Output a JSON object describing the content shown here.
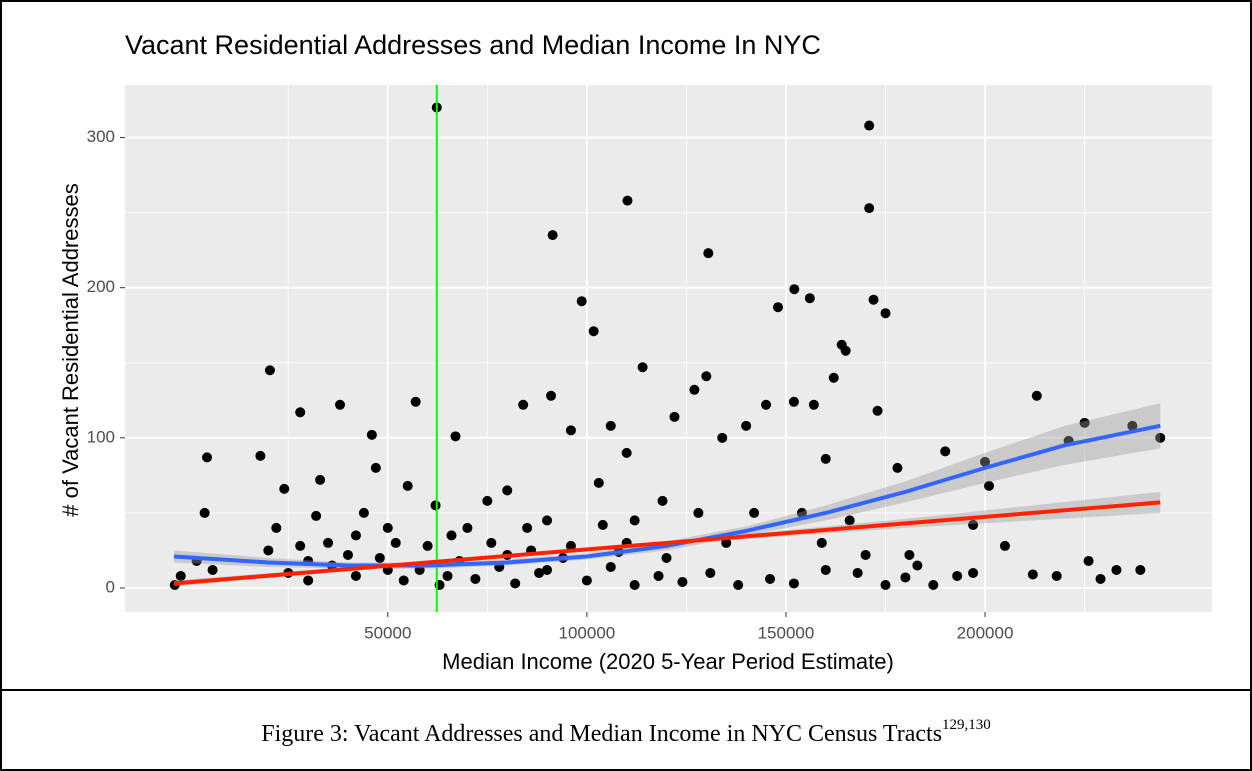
{
  "chart_data": {
    "type": "scatter",
    "title": "Vacant Residential Addresses and Median Income In NYC",
    "x_label": "Median Income (2020 5-Year Period Estimate)",
    "y_label": "# of Vacant Residential Addresses",
    "caption": "Figure 3: Vacant Addresses and Median Income in NYC Census Tracts",
    "caption_refs": "129,130",
    "color": "#000000",
    "x": [
      62300,
      170900,
      110200,
      91400,
      130500,
      170900,
      98700,
      152100,
      148000,
      156000,
      172000,
      175000,
      101700,
      20400,
      114000,
      164000,
      165000,
      162000,
      67000,
      38000,
      28000,
      18000,
      4600,
      57000,
      46000,
      91000,
      84000,
      106000,
      122000,
      130000,
      127000,
      145000,
      152000,
      157000,
      173000,
      190000,
      213000,
      225000,
      221000,
      244000,
      237000,
      178000,
      160000,
      140000,
      134000,
      110000,
      96000,
      103000,
      80000,
      75000,
      55000,
      47000,
      33000,
      24000,
      4000,
      200000,
      201000,
      197000,
      205000,
      212000,
      218000,
      226000,
      229000,
      233000,
      239000,
      183000,
      187000,
      193000,
      197000,
      181000,
      170000,
      166000,
      154000,
      159000,
      142000,
      135000,
      128000,
      119000,
      112000,
      104000,
      90000,
      85000,
      70000,
      62000,
      50000,
      42000,
      35000,
      28000,
      20000,
      2000,
      -2000,
      -3500,
      6000,
      25000,
      30000,
      36000,
      42000,
      48000,
      54000,
      58000,
      63000,
      68000,
      72000,
      78000,
      82000,
      88000,
      94000,
      100000,
      106000,
      112000,
      118000,
      124000,
      131000,
      138000,
      146000,
      152000,
      160000,
      168000,
      175000,
      180000,
      40000,
      60000,
      76000,
      86000,
      96000,
      108000,
      120000,
      22000,
      32000,
      44000,
      52000,
      66000,
      30000,
      50000,
      65000,
      80000,
      90000,
      110000
    ],
    "values": [
      320,
      308,
      258,
      235,
      223,
      253,
      191,
      199,
      187,
      193,
      192,
      183,
      171,
      145,
      147,
      162,
      158,
      140,
      101,
      122,
      117,
      88,
      87,
      124,
      102,
      128,
      122,
      108,
      114,
      141,
      132,
      122,
      124,
      122,
      118,
      91,
      128,
      110,
      98,
      100,
      108,
      80,
      86,
      108,
      100,
      90,
      105,
      70,
      65,
      58,
      68,
      80,
      72,
      66,
      50,
      84,
      68,
      42,
      28,
      9,
      8,
      18,
      6,
      12,
      12,
      15,
      2,
      8,
      10,
      22,
      22,
      45,
      50,
      30,
      50,
      30,
      50,
      58,
      45,
      42,
      45,
      40,
      40,
      55,
      40,
      35,
      30,
      28,
      25,
      18,
      8,
      2,
      12,
      10,
      5,
      15,
      8,
      20,
      5,
      12,
      2,
      18,
      6,
      14,
      3,
      10,
      20,
      5,
      14,
      2,
      8,
      4,
      10,
      2,
      6,
      3,
      12,
      10,
      2,
      7,
      22,
      28,
      30,
      25,
      28,
      24,
      20,
      40,
      48,
      50,
      30,
      35,
      18,
      12,
      8,
      22,
      12,
      30
    ],
    "fits": [
      {
        "color": "#3366ff",
        "x": [
          -3700,
          20000,
          40000,
          60000,
          80000,
          100000,
          120000,
          140000,
          160000,
          180000,
          200000,
          220000,
          244000
        ],
        "values": [
          21,
          17,
          15,
          15,
          17,
          21,
          28,
          38,
          50,
          64,
          80,
          95,
          108
        ],
        "lower": [
          17,
          14,
          13,
          13,
          15,
          19,
          25,
          35,
          45,
          57,
          70,
          82,
          93
        ],
        "upper": [
          25,
          20,
          17,
          17,
          19,
          23,
          31,
          41,
          55,
          71,
          90,
          108,
          123
        ]
      },
      {
        "color": "#ff2200",
        "x": [
          -3700,
          60000,
          120000,
          180000,
          244000
        ],
        "values": [
          3,
          17,
          30,
          43,
          57
        ],
        "lower": [
          1,
          16,
          29,
          40,
          50
        ],
        "upper": [
          5,
          18,
          31,
          46,
          64
        ]
      }
    ],
    "vline": {
      "x": 62300,
      "color": "#00ff00"
    },
    "xlim": [
      -16000,
      257000
    ],
    "ylim": [
      -16,
      335
    ],
    "xticks": [
      50000,
      100000,
      150000,
      200000
    ],
    "yticks": [
      0,
      100,
      200,
      300
    ],
    "xminor": [
      25000,
      75000,
      125000,
      175000,
      225000
    ],
    "yminor": [
      50,
      150,
      250
    ],
    "grid": true
  }
}
